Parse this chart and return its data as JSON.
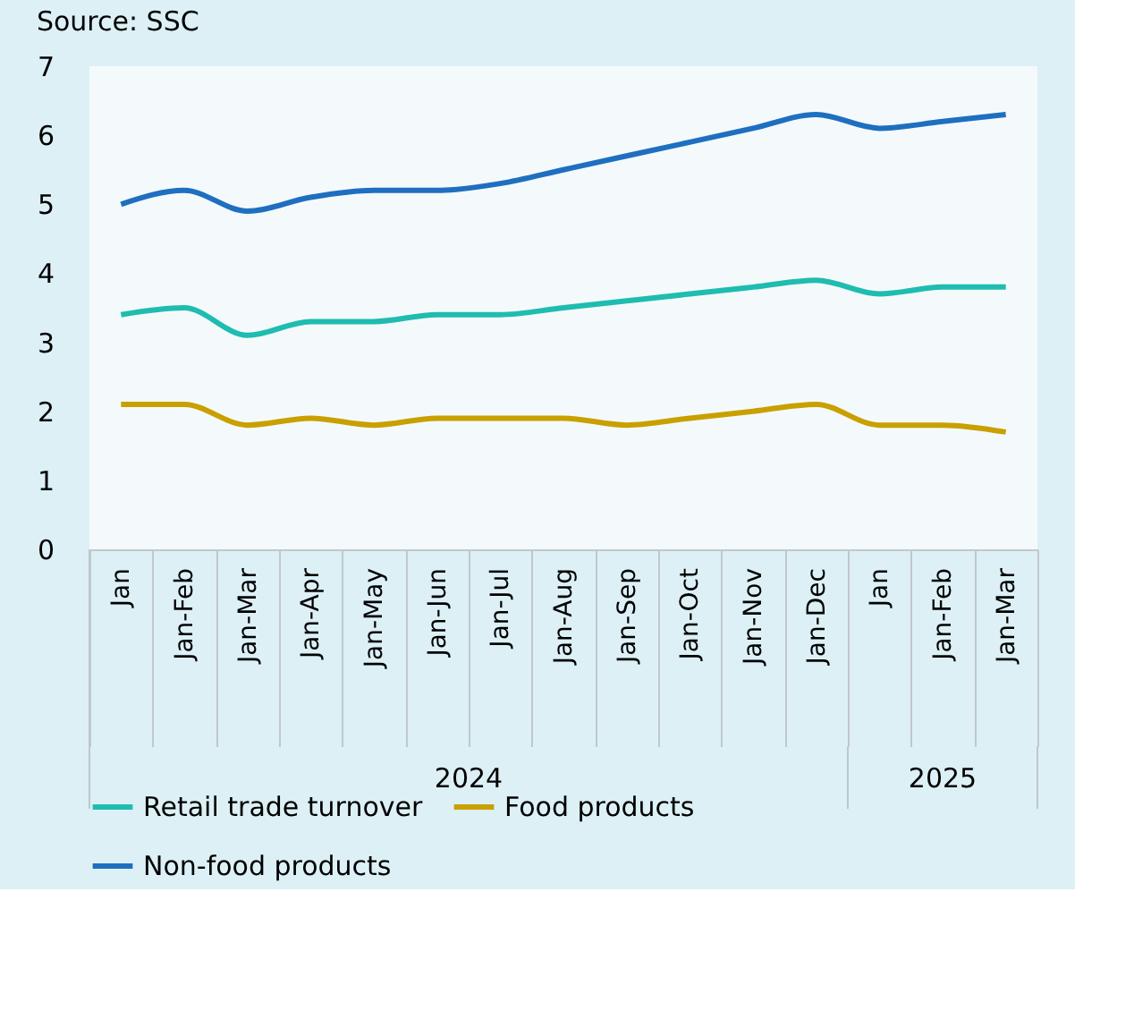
{
  "chart_data": {
    "type": "line",
    "title": "Source: SSC",
    "categories": [
      "Jan",
      "Jan-Feb",
      "Jan-Mar",
      "Jan-Apr",
      "Jan-May",
      "Jan-Jun",
      "Jan-Jul",
      "Jan-Aug",
      "Jan-Sep",
      "Jan-Oct",
      "Jan-Nov",
      "Jan-Dec",
      "Jan",
      "Jan-Feb",
      "Jan-Mar"
    ],
    "annotations": [
      "2024",
      "2025"
    ],
    "series": [
      {
        "name": "Retail trade turnover",
        "color": "#1fbcb0",
        "values": [
          3.4,
          3.5,
          3.1,
          3.3,
          3.3,
          3.4,
          3.4,
          3.5,
          3.6,
          3.7,
          3.8,
          3.9,
          3.7,
          3.8,
          3.8
        ]
      },
      {
        "name": "Food products",
        "color": "#c9a000",
        "values": [
          2.1,
          2.1,
          1.8,
          1.9,
          1.8,
          1.9,
          1.9,
          1.9,
          1.8,
          1.9,
          2.0,
          2.1,
          1.8,
          1.8,
          1.7
        ]
      },
      {
        "name": "Non-food products",
        "color": "#1f6fc0",
        "values": [
          5.0,
          5.2,
          4.9,
          5.1,
          5.2,
          5.2,
          5.3,
          5.5,
          5.7,
          5.9,
          6.1,
          6.3,
          6.1,
          6.2,
          6.3
        ]
      }
    ],
    "ylim": [
      0,
      7
    ],
    "yticks": [
      0,
      1,
      2,
      3,
      4,
      5,
      6,
      7
    ],
    "grid": false,
    "legend": "bottom",
    "marker": "none",
    "line_style": "solid"
  }
}
